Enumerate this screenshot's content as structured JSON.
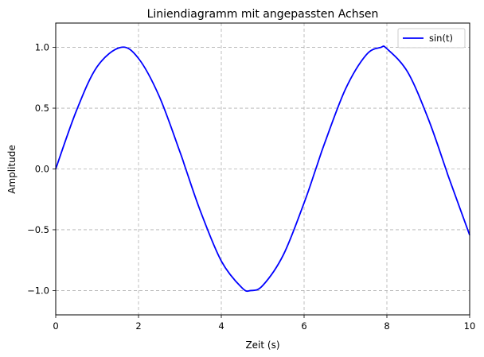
{
  "chart_data": {
    "type": "line",
    "title": "Liniendiagramm mit angepassten Achsen",
    "xlabel": "Zeit (s)",
    "ylabel": "Amplitude",
    "xlim": [
      0,
      10
    ],
    "ylim": [
      -1.2,
      1.2
    ],
    "x_ticks": [
      0,
      2,
      4,
      6,
      8,
      10
    ],
    "x_tick_labels": [
      "0",
      "2",
      "4",
      "6",
      "8",
      "10"
    ],
    "y_ticks": [
      -1.0,
      -0.5,
      0.0,
      0.5,
      1.0
    ],
    "y_tick_labels": [
      "−1.0",
      "−0.5",
      "0.0",
      "0.5",
      "1.0"
    ],
    "grid": true,
    "grid_style": "dashed",
    "legend_position": "top-right",
    "series": [
      {
        "name": "sin(t)",
        "color": "#0000ff",
        "x": [
          0.0,
          0.5,
          1.0,
          1.5708,
          2.0,
          2.5,
          3.0,
          3.1416,
          3.5,
          4.0,
          4.5,
          4.7124,
          5.0,
          5.5,
          6.0,
          6.2832,
          6.5,
          7.0,
          7.5,
          7.854,
          8.0,
          8.5,
          9.0,
          9.4248,
          9.5,
          10.0
        ],
        "y": [
          0.0,
          0.479,
          0.841,
          1.0,
          0.909,
          0.598,
          0.141,
          0.0,
          -0.351,
          -0.757,
          -0.978,
          -1.0,
          -0.959,
          -0.706,
          -0.279,
          0.0,
          0.215,
          0.657,
          0.938,
          1.0,
          0.989,
          0.798,
          0.412,
          0.0,
          -0.075,
          -0.544
        ]
      }
    ]
  }
}
